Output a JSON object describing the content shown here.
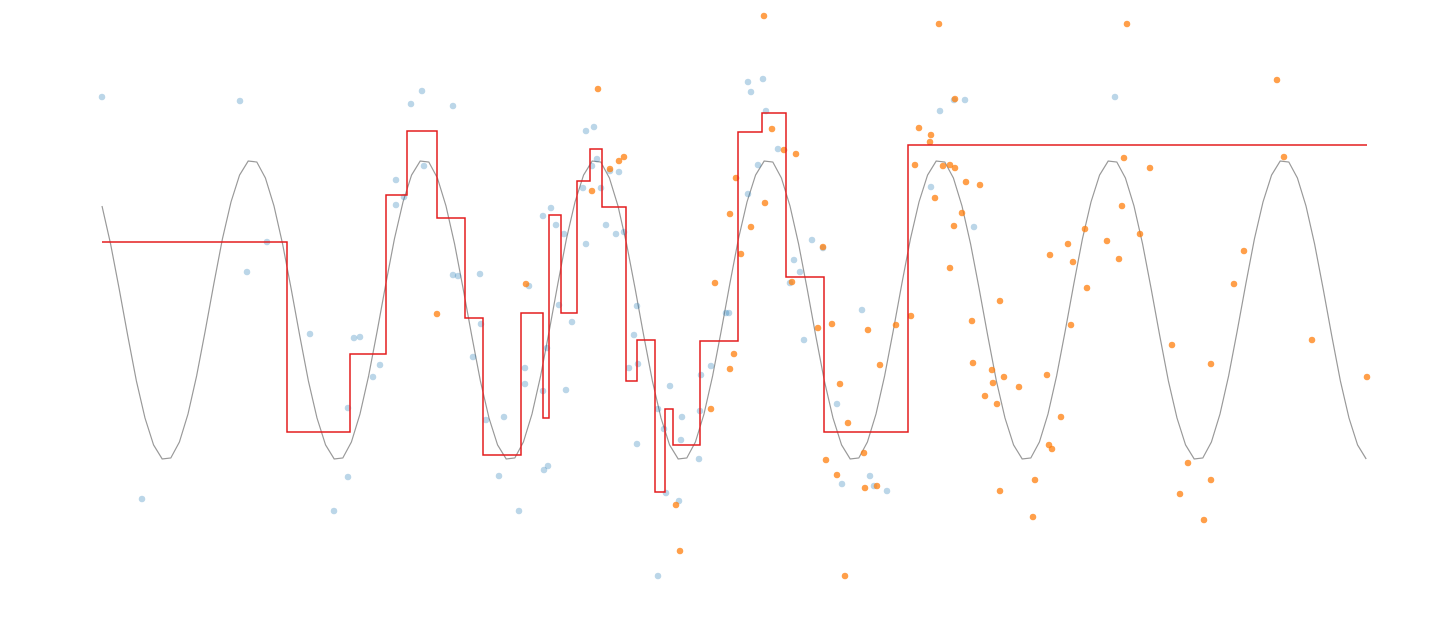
{
  "chart_data": {
    "type": "scatter",
    "xlim": [
      0,
      126.5
    ],
    "ylim": [
      -3.2,
      3.1
    ],
    "series": [
      {
        "type": "line",
        "color": "#999999",
        "width": 1.2,
        "x": [
          0,
          0.86,
          1.72,
          2.58,
          3.44,
          4.3,
          5.16,
          6.02,
          6.88,
          7.74,
          8.6,
          9.46,
          10.32,
          11.18,
          12.04,
          12.9,
          13.76,
          14.62,
          15.48,
          16.34,
          17.2,
          18.06,
          18.92,
          19.78,
          20.64,
          21.5,
          22.36,
          23.22,
          24.08,
          24.94,
          25.8,
          26.66,
          27.52,
          28.38,
          29.24,
          30.1,
          30.96,
          31.82,
          32.68,
          33.54,
          34.4,
          35.26,
          36.12,
          36.98,
          37.84,
          38.7,
          39.56,
          40.42,
          41.28,
          42.14,
          43,
          43.86,
          44.72,
          45.58,
          46.44,
          47.3,
          48.16,
          49.02,
          49.88,
          50.74,
          51.6,
          52.46,
          53.32,
          54.18,
          55.04,
          55.9,
          56.76,
          57.62,
          58.48,
          59.34,
          60.2,
          61.06,
          61.92,
          62.78,
          63.64,
          64.5,
          65.36,
          66.22,
          67.08,
          67.94,
          68.8,
          69.66,
          70.52,
          71.38,
          72.24,
          73.1,
          73.96,
          74.82,
          75.68,
          76.54,
          77.4,
          78.26,
          79.12,
          79.98,
          80.84,
          81.7,
          82.56,
          83.42,
          84.28,
          85.14,
          86,
          86.86,
          87.72,
          88.58,
          89.44,
          90.3,
          91.16,
          92.02,
          92.88,
          93.74,
          94.6,
          95.46,
          96.32,
          97.18,
          98.04,
          98.9,
          99.76,
          100.62,
          101.48,
          102.34,
          103.2,
          104.06,
          104.92,
          105.78,
          106.64,
          107.5,
          108.36,
          109.22,
          110.08,
          110.94,
          111.8,
          112.66,
          113.52,
          114.38,
          115.24,
          116.1,
          116.96,
          117.82,
          118.68,
          119.54,
          120.4,
          121.26,
          122.12,
          122.98,
          123.84,
          124.7,
          125.56,
          126.42
        ],
        "values": [
          1.04,
          0.66,
          0.21,
          -0.26,
          -0.71,
          -1.08,
          -1.35,
          -1.49,
          -1.48,
          -1.32,
          -1.04,
          -0.66,
          -0.21,
          0.26,
          0.71,
          1.08,
          1.35,
          1.49,
          1.48,
          1.32,
          1.04,
          0.66,
          0.21,
          -0.26,
          -0.71,
          -1.08,
          -1.35,
          -1.49,
          -1.48,
          -1.32,
          -1.04,
          -0.66,
          -0.21,
          0.26,
          0.71,
          1.08,
          1.35,
          1.49,
          1.48,
          1.32,
          1.04,
          0.66,
          0.21,
          -0.26,
          -0.71,
          -1.08,
          -1.35,
          -1.49,
          -1.48,
          -1.32,
          -1.04,
          -0.66,
          -0.21,
          0.26,
          0.71,
          1.08,
          1.35,
          1.49,
          1.48,
          1.32,
          1.04,
          0.66,
          0.21,
          -0.26,
          -0.71,
          -1.08,
          -1.35,
          -1.49,
          -1.48,
          -1.32,
          -1.04,
          -0.66,
          -0.21,
          0.26,
          0.71,
          1.08,
          1.35,
          1.49,
          1.48,
          1.32,
          1.04,
          0.66,
          0.21,
          -0.26,
          -0.71,
          -1.08,
          -1.35,
          -1.49,
          -1.48,
          -1.32,
          -1.04,
          -0.66,
          -0.21,
          0.26,
          0.71,
          1.08,
          1.35,
          1.49,
          1.48,
          1.32,
          1.04,
          0.66,
          0.21,
          -0.26,
          -0.71,
          -1.08,
          -1.35,
          -1.49,
          -1.48,
          -1.32,
          -1.04,
          -0.66,
          -0.21,
          0.26,
          0.71,
          1.08,
          1.35,
          1.49,
          1.48,
          1.32,
          1.04,
          0.66,
          0.21,
          -0.26,
          -0.71,
          -1.08,
          -1.35,
          -1.49,
          -1.48,
          -1.32,
          -1.04,
          -0.66,
          -0.21,
          0.26,
          0.71,
          1.08,
          1.35,
          1.49,
          1.48,
          1.32,
          1.04,
          0.66,
          0.21,
          -0.26,
          -0.71,
          -1.08,
          -1.35,
          -1.49
        ]
      },
      {
        "type": "scatter",
        "color": "#1f77b4",
        "alpha": 0.3,
        "x": [
          0,
          13.8,
          14.5,
          4,
          16.5,
          20.8,
          23.2,
          24.6,
          24.6,
          25.2,
          25.8,
          27.1,
          27.8,
          29.4,
          29.4,
          30.2,
          30.9,
          32,
          32.2,
          35.1,
          35.1,
          35.6,
          37.8,
          37.9,
          37.1,
          38.4,
          39.7,
          40.2,
          41.7,
          42.3,
          42.3,
          42.7,
          44.1,
          44.2,
          44.6,
          44.5,
          44.1,
          44.9,
          45.4,
          45.7,
          46.2,
          46.4,
          47,
          48.1,
          48.4,
          48.4,
          49.2,
          49.5,
          49,
          49.9,
          50.4,
          50.8,
          51.4,
          51.7,
          52.2,
          52.7,
          53.2,
          53.5,
          53.5,
          53.6,
          55.6,
          55.6,
          56.2,
          56.4,
          56.8,
          57.7,
          58,
          57.9,
          59.7,
          59.9,
          59.8,
          60.9,
          62.4,
          62.7,
          64.6,
          64.9,
          64.6,
          65.6,
          66.1,
          66.4,
          67.6,
          68.8,
          69.2,
          69.8,
          70.2,
          71,
          72.1,
          73.5,
          74,
          76,
          76.8,
          77.2,
          78.5,
          82.9,
          83.8,
          85.2,
          86.3,
          87.2,
          101.3
        ],
        "values": [
          2.13,
          2.09,
          0.38,
          -1.89,
          0.68,
          -0.24,
          -2.01,
          -1.67,
          -0.98,
          -0.28,
          -0.27,
          -0.67,
          -0.55,
          1.3,
          1.05,
          1.13,
          2.06,
          2.19,
          1.44,
          2.04,
          0.35,
          0.34,
          0.36,
          -0.14,
          -0.47,
          -1.1,
          -1.66,
          -1.07,
          -2.01,
          -0.58,
          -0.74,
          0.24,
          -0.81,
          -1.6,
          -1.56,
          -0.38,
          0.94,
          1.02,
          0.85,
          0.05,
          0.76,
          -0.8,
          -0.12,
          1.22,
          0.66,
          1.79,
          1.83,
          1.51,
          1.44,
          1.22,
          0.85,
          1.39,
          0.76,
          1.38,
          0.78,
          -0.58,
          -0.25,
          0.04,
          -1.34,
          -0.54,
          -2.66,
          -0.99,
          -1.19,
          -1.83,
          -0.76,
          -1.91,
          -1.07,
          -1.3,
          -1.49,
          -0.65,
          -1.01,
          -0.56,
          -0.03,
          -0.03,
          2.28,
          2.18,
          1.16,
          1.45,
          2.31,
          1.99,
          1.61,
          0.27,
          0.5,
          0.38,
          -0.3,
          0.7,
          0.62,
          -0.94,
          -1.74,
          0,
          -1.66,
          -1.76,
          -1.81,
          1.23,
          1.99,
          2.1,
          2.1,
          0.83,
          2.13
        ]
      },
      {
        "type": "scatter",
        "color": "#ff7f0e",
        "alpha": 0.75,
        "x": [
          33.5,
          42.4,
          49.6,
          49,
          50.8,
          51.7,
          52.2,
          57.4,
          57.8,
          60.9,
          61.3,
          62.8,
          63.2,
          62.8,
          63.4,
          63.9,
          64.9,
          66.2,
          66.3,
          67,
          68.2,
          69.4,
          69,
          71.6,
          72.1,
          72.4,
          73,
          73.5,
          73.8,
          74.3,
          74.6,
          76.3,
          76.2,
          76.6,
          77.5,
          77.8,
          79.4,
          80.9,
          81.3,
          81.7,
          82.9,
          82.8,
          83.3,
          83.7,
          84.1,
          84.8,
          84.8,
          85.3,
          85.3,
          85.2,
          86,
          86.4,
          87,
          87.1,
          87.8,
          88.3,
          89,
          89.1,
          89.5,
          89.8,
          90.2,
          89.8,
          91.7,
          93.1,
          93.3,
          94.5,
          94.8,
          94.7,
          95,
          95.9,
          96.6,
          96.9,
          97.1,
          98.3,
          98.5,
          100.5,
          101.7,
          102,
          102.2,
          102.5,
          103.8,
          104.8,
          107,
          107.8,
          108.6,
          110.2,
          110.9,
          110.9,
          113.2,
          114.2,
          117.5,
          118.2,
          121,
          126.5
        ],
        "values": [
          -0.04,
          0.26,
          2.21,
          1.19,
          1.41,
          1.49,
          1.53,
          -1.95,
          -2.41,
          -0.99,
          0.27,
          -0.59,
          -0.44,
          0.96,
          1.32,
          0.56,
          0.83,
          2.94,
          1.07,
          1.81,
          1.6,
          1.56,
          0.28,
          -0.18,
          0.63,
          -1.5,
          -0.14,
          -1.65,
          -0.74,
          -2.66,
          -1.13,
          -1.78,
          -1.43,
          -0.2,
          -1.76,
          -0.55,
          -0.15,
          -0.06,
          1.45,
          1.82,
          1.75,
          1.68,
          1.12,
          2.86,
          1.44,
          1.45,
          0.42,
          1.42,
          2.11,
          0.84,
          0.97,
          1.28,
          -0.11,
          -0.53,
          1.25,
          -0.86,
          -0.6,
          -0.73,
          -0.94,
          0.09,
          -0.67,
          -1.81,
          -0.77,
          -2.07,
          -1.7,
          -0.65,
          0.55,
          -1.35,
          -1.39,
          -1.07,
          0.66,
          -0.15,
          0.48,
          0.81,
          0.22,
          0.69,
          0.51,
          1.04,
          1.52,
          2.86,
          0.76,
          1.42,
          -0.35,
          -1.84,
          -1.53,
          -2.1,
          -1.7,
          -0.54,
          0.26,
          0.59,
          2.3,
          1.53,
          -0.3,
          -0.67
        ]
      },
      {
        "type": "step",
        "color": "#e31a1c",
        "width": 1.5,
        "x": [
          0,
          18.5,
          24.8,
          28.4,
          30.5,
          33.5,
          36.3,
          38.1,
          41.9,
          44.1,
          44.7,
          45.9,
          47.5,
          48.8,
          50,
          52.4,
          53.5,
          55.3,
          56.3,
          57.1,
          59.8,
          63.6,
          66,
          68.4,
          72.2,
          80.6,
          126.5
        ],
        "values": [
          0.68,
          -1.22,
          -0.44,
          1.15,
          1.79,
          0.92,
          -0.08,
          -1.45,
          -0.03,
          -1.08,
          0.95,
          -0.03,
          1.29,
          1.61,
          1.03,
          -0.71,
          -0.3,
          -1.82,
          -0.99,
          -1.35,
          -0.31,
          1.78,
          1.97,
          0.33,
          -1.22,
          1.65,
          1.65
        ]
      }
    ]
  }
}
